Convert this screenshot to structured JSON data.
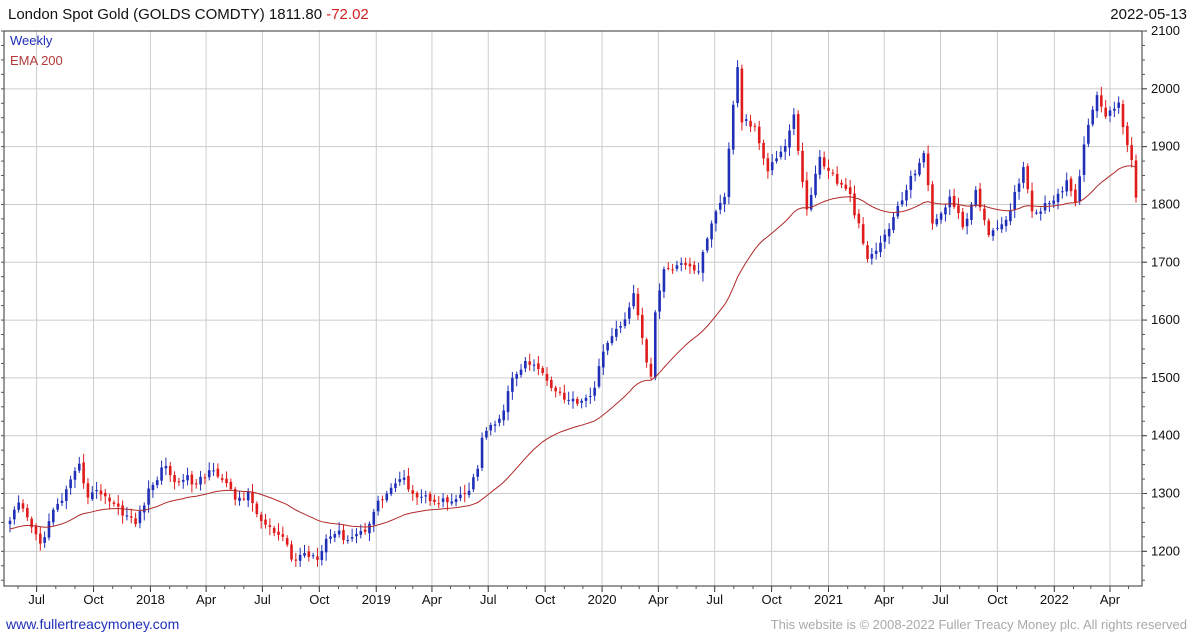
{
  "header": {
    "title": "London Spot Gold (GOLDS COMDTY) 1811.80",
    "change": "-72.02",
    "date": "2022-05-13"
  },
  "legend": {
    "weekly": "Weekly",
    "ema": "EMA 200"
  },
  "footer": {
    "left": "www.fullertreacymoney.com",
    "right": "This website is © 2008-2022 Fuller Treacy Money plc. All rights reserved"
  },
  "colors": {
    "up": "#1f2fb8",
    "down": "#e01b1b",
    "ema": "#b02a2a",
    "grid": "#cccccc"
  },
  "chart_data": {
    "type": "candlestick",
    "frequency": "weekly",
    "overlay": "EMA 200",
    "ylim": [
      1140,
      2100
    ],
    "y_ticks": [
      1200,
      1300,
      1400,
      1500,
      1600,
      1700,
      1800,
      1900,
      2000,
      2100
    ],
    "x_ticks": [
      "Jul",
      "Oct",
      "2018",
      "Apr",
      "Jul",
      "Oct",
      "2019",
      "Apr",
      "Jul",
      "Oct",
      "2020",
      "Apr",
      "Jul",
      "Oct",
      "2021",
      "Apr",
      "Jul",
      "Oct",
      "2022",
      "Apr"
    ],
    "grid": true,
    "axis_side": "right",
    "legend_position": "top-left",
    "close_anchors": [
      [
        "2017-05-19",
        1253
      ],
      [
        "2017-06-02",
        1280
      ],
      [
        "2017-06-16",
        1255
      ],
      [
        "2017-07-07",
        1212
      ],
      [
        "2017-07-28",
        1268
      ],
      [
        "2017-08-11",
        1290
      ],
      [
        "2017-09-08",
        1346
      ],
      [
        "2017-09-22",
        1298
      ],
      [
        "2017-10-13",
        1303
      ],
      [
        "2017-11-10",
        1275
      ],
      [
        "2017-12-08",
        1248
      ],
      [
        "2017-12-29",
        1303
      ],
      [
        "2018-01-26",
        1352
      ],
      [
        "2018-02-09",
        1316
      ],
      [
        "2018-02-23",
        1330
      ],
      [
        "2018-03-16",
        1315
      ],
      [
        "2018-04-13",
        1346
      ],
      [
        "2018-05-04",
        1314
      ],
      [
        "2018-05-18",
        1291
      ],
      [
        "2018-06-08",
        1297
      ],
      [
        "2018-06-29",
        1252
      ],
      [
        "2018-07-20",
        1231
      ],
      [
        "2018-08-10",
        1212
      ],
      [
        "2018-08-17",
        1184
      ],
      [
        "2018-09-07",
        1196
      ],
      [
        "2018-09-28",
        1192
      ],
      [
        "2018-10-12",
        1222
      ],
      [
        "2018-10-26",
        1233
      ],
      [
        "2018-11-16",
        1222
      ],
      [
        "2018-12-14",
        1238
      ],
      [
        "2019-01-04",
        1284
      ],
      [
        "2019-02-01",
        1318
      ],
      [
        "2019-02-15",
        1322
      ],
      [
        "2019-03-08",
        1296
      ],
      [
        "2019-03-29",
        1292
      ],
      [
        "2019-04-26",
        1285
      ],
      [
        "2019-05-10",
        1286
      ],
      [
        "2019-05-31",
        1305
      ],
      [
        "2019-06-14",
        1342
      ],
      [
        "2019-06-21",
        1400
      ],
      [
        "2019-07-19",
        1425
      ],
      [
        "2019-08-09",
        1497
      ],
      [
        "2019-08-30",
        1525
      ],
      [
        "2019-09-20",
        1516
      ],
      [
        "2019-10-11",
        1488
      ],
      [
        "2019-11-08",
        1460
      ],
      [
        "2019-11-29",
        1462
      ],
      [
        "2019-12-20",
        1478
      ],
      [
        "2020-01-03",
        1552
      ],
      [
        "2020-01-31",
        1588
      ],
      [
        "2020-02-21",
        1643
      ],
      [
        "2020-03-13",
        1530
      ],
      [
        "2020-03-20",
        1498
      ],
      [
        "2020-03-27",
        1617
      ],
      [
        "2020-04-10",
        1683
      ],
      [
        "2020-05-08",
        1703
      ],
      [
        "2020-06-05",
        1684
      ],
      [
        "2020-06-26",
        1771
      ],
      [
        "2020-07-17",
        1809
      ],
      [
        "2020-07-31",
        1975
      ],
      [
        "2020-08-07",
        2035
      ],
      [
        "2020-08-14",
        1945
      ],
      [
        "2020-09-04",
        1934
      ],
      [
        "2020-09-25",
        1862
      ],
      [
        "2020-10-23",
        1902
      ],
      [
        "2020-11-06",
        1951
      ],
      [
        "2020-11-27",
        1788
      ],
      [
        "2020-12-18",
        1881
      ],
      [
        "2021-01-08",
        1849
      ],
      [
        "2021-02-05",
        1814
      ],
      [
        "2021-02-26",
        1734
      ],
      [
        "2021-03-05",
        1700
      ],
      [
        "2021-03-26",
        1732
      ],
      [
        "2021-04-16",
        1776
      ],
      [
        "2021-05-14",
        1843
      ],
      [
        "2021-06-04",
        1891
      ],
      [
        "2021-06-18",
        1764
      ],
      [
        "2021-07-16",
        1812
      ],
      [
        "2021-08-06",
        1763
      ],
      [
        "2021-08-27",
        1818
      ],
      [
        "2021-09-17",
        1754
      ],
      [
        "2021-09-24",
        1750
      ],
      [
        "2021-10-15",
        1767
      ],
      [
        "2021-11-12",
        1868
      ],
      [
        "2021-11-26",
        1788
      ],
      [
        "2021-12-17",
        1798
      ],
      [
        "2022-01-21",
        1835
      ],
      [
        "2022-02-04",
        1808
      ],
      [
        "2022-02-18",
        1898
      ],
      [
        "2022-03-04",
        1970
      ],
      [
        "2022-03-11",
        1986
      ],
      [
        "2022-03-25",
        1958
      ],
      [
        "2022-04-15",
        1975
      ],
      [
        "2022-04-22",
        1934
      ],
      [
        "2022-04-29",
        1896
      ],
      [
        "2022-05-06",
        1883
      ],
      [
        "2022-05-13",
        1811.8
      ]
    ]
  }
}
